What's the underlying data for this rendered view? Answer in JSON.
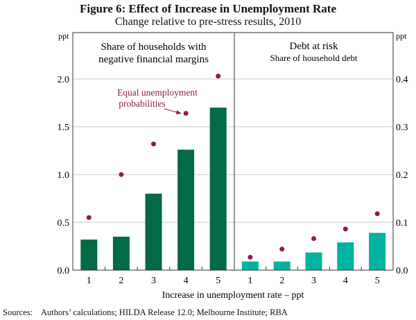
{
  "chart_data": {
    "type": "bar",
    "title": "Figure 6: Effect of Increase in Unemployment Rate",
    "subtitle": "Change relative to pre-stress results, 2010",
    "xlabel": "Increase in unemployment rate – ppt",
    "categories": [
      "1",
      "2",
      "3",
      "4",
      "5"
    ],
    "grid": true,
    "panels": [
      {
        "title": [
          "Share of households with",
          "negative financial margins"
        ],
        "ylabel": "ppt",
        "ylim": [
          0,
          2.4
        ],
        "yticks": [
          "0.0",
          "0.5",
          "1.0",
          "1.5",
          "2.0"
        ],
        "ytick_values": [
          0,
          0.5,
          1.0,
          1.5,
          2.0
        ],
        "axis_side": "left",
        "bar_color": "#006b45",
        "series": [
          {
            "name": "Bars",
            "type": "bar",
            "values": [
              0.32,
              0.35,
              0.8,
              1.26,
              1.7
            ]
          },
          {
            "name": "Equal unemployment probabilities",
            "type": "scatter",
            "values": [
              0.55,
              1.0,
              1.32,
              1.64,
              2.03
            ]
          }
        ]
      },
      {
        "title": [
          "Debt at risk",
          "Share of household debt"
        ],
        "ylabel": "ppt",
        "ylim": [
          0,
          0.48
        ],
        "yticks": [
          "0.0",
          "0.1",
          "0.2",
          "0.3",
          "0.4"
        ],
        "ytick_values": [
          0,
          0.1,
          0.2,
          0.3,
          0.4
        ],
        "axis_side": "right",
        "bar_color": "#00b2a2",
        "series": [
          {
            "name": "Bars",
            "type": "bar",
            "values": [
              0.018,
              0.018,
              0.037,
              0.058,
              0.078
            ]
          },
          {
            "name": "Equal unemployment probabilities",
            "type": "scatter",
            "values": [
              0.027,
              0.044,
              0.066,
              0.086,
              0.118
            ]
          }
        ]
      }
    ],
    "annotation": [
      "Equal unemployment",
      "probabilities"
    ],
    "dot_color": "#8c1c50"
  },
  "sources": "Sources:    Authors’ calculations; HILDA Release 12.0; Melbourne Institute; RBA"
}
